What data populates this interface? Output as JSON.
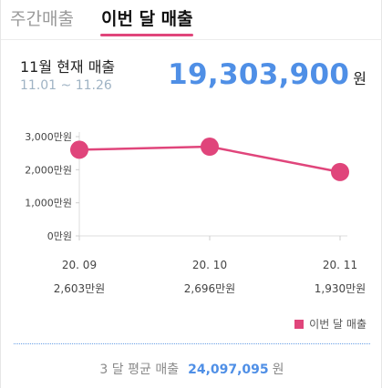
{
  "tabs": [
    {
      "label": "주간매출",
      "active": false
    },
    {
      "label": "이번 달 매출",
      "active": true
    }
  ],
  "summary": {
    "title": "11월 현재 매출",
    "date_range": "11.01 ~ 11.26",
    "total_value": "19,303,900",
    "total_unit": "원"
  },
  "colors": {
    "accent": "#e0457b",
    "primary_blue": "#4f8fe6"
  },
  "chart_data": {
    "type": "line",
    "categories": [
      "20. 09",
      "20. 10",
      "20. 11"
    ],
    "value_labels": [
      "2,603만원",
      "2,696만원",
      "1,930만원"
    ],
    "series": [
      {
        "name": "이번 달 매출",
        "values": [
          2603,
          2696,
          1930
        ],
        "color": "#e0457b"
      }
    ],
    "ylim": [
      0,
      3000
    ],
    "yticks": [
      0,
      1000,
      2000,
      3000
    ],
    "ytick_labels": [
      "0만원",
      "1,000만원",
      "2,000만원",
      "3,000만원"
    ],
    "grid": false,
    "legend": "bottom-right"
  },
  "legend": {
    "label": "이번 달 매출"
  },
  "average": {
    "label": "3 달 평균 매출",
    "value": "24,097,095",
    "unit": "원"
  }
}
